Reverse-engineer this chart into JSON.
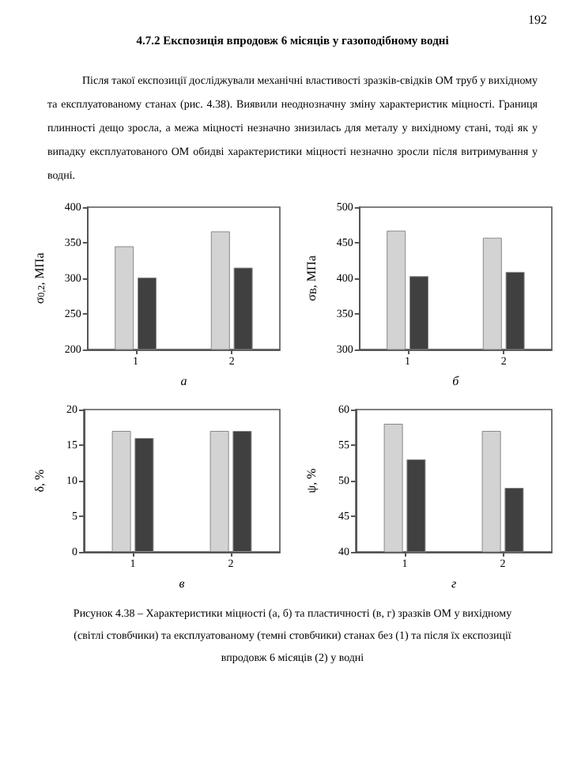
{
  "chart_data": [
    {
      "type": "bar",
      "title": "4.7.2 Експозиція впродовж 6 місяців у газоподібному водні",
      "subtitle": "Після такої експозиції досліджували механічні властивості зразків-свідків ОМ труб у вихідному та експлуатованому станах (рис. 4.38). Виявили неоднозначну зміну характеристик міцності. Границя плинності дещо зросла, а межа міцності незначно знизилась для металу у вихідному стані, тоді як у випадку експлуатованого ОМ обидві характеристики міцності незначно зросли після витримування у водні.",
      "annotations": [
        "192"
      ],
      "xlabel": "а",
      "ylabel": "σ$_{0,2}$, МПа",
      "categories": [
        "1",
        "2"
      ],
      "series": [
        {
          "color": "#d3d3d3",
          "values": [
            345,
            366
          ]
        },
        {
          "color": "#404040",
          "values": [
            301,
            315
          ]
        }
      ],
      "ylim": [
        200,
        400
      ],
      "yticks": [
        200,
        250,
        300,
        350,
        400
      ],
      "grid": false
    },
    {
      "type": "bar",
      "xlabel": "б",
      "ylabel": "σ$_{В}$, МПа",
      "categories": [
        "1",
        "2"
      ],
      "series": [
        {
          "color": "#d3d3d3",
          "values": [
            467,
            457
          ]
        },
        {
          "color": "#404040",
          "values": [
            403,
            409
          ]
        }
      ],
      "ylim": [
        300,
        500
      ],
      "yticks": [
        300,
        350,
        400,
        450,
        500
      ],
      "grid": false
    },
    {
      "type": "bar",
      "xlabel": "в",
      "ylabel": "δ, %",
      "categories": [
        "1",
        "2"
      ],
      "series": [
        {
          "color": "#d3d3d3",
          "values": [
            17,
            17
          ]
        },
        {
          "color": "#404040",
          "values": [
            16,
            17
          ]
        }
      ],
      "ylim": [
        0,
        20
      ],
      "yticks": [
        0,
        5,
        10,
        15,
        20
      ],
      "grid": false
    },
    {
      "type": "bar",
      "xlabel": "г",
      "ylabel": "ψ, %",
      "categories": [
        "1",
        "2"
      ],
      "series": [
        {
          "color": "#d3d3d3",
          "values": [
            58,
            57
          ]
        },
        {
          "color": "#404040",
          "values": [
            53,
            49
          ]
        }
      ],
      "ylim": [
        40,
        60
      ],
      "yticks": [
        40,
        45,
        50,
        55,
        60
      ],
      "grid": false,
      "annotations": [
        "Рисунок 4.38 – Характеристики міцності (а, б) та пластичності (в, г) зразків ОМ у вихідному (світлі стовбчики) та експлуатованому (темні стовбчики) станах без (1) та після їх експозиції впродовж 6 місяців (2) у водні"
      ]
    }
  ]
}
